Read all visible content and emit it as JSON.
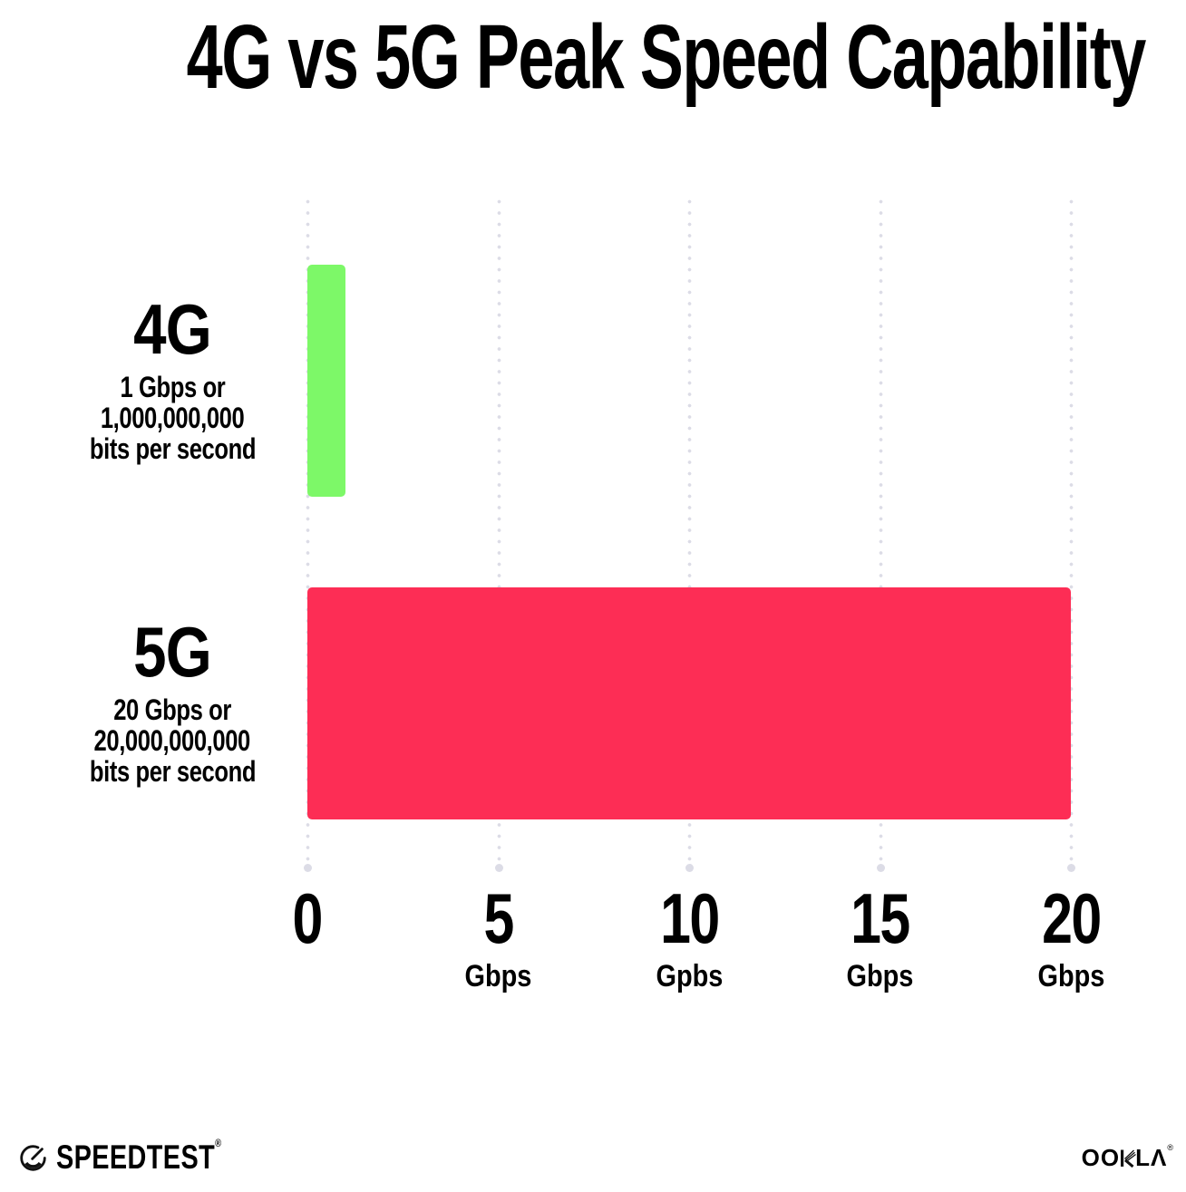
{
  "title": "4G vs 5G Peak Speed Capability",
  "chart_data": {
    "type": "bar",
    "orientation": "horizontal",
    "categories": [
      "4G",
      "5G"
    ],
    "values": [
      1,
      20
    ],
    "unit": "Gbps",
    "title": "4G vs 5G Peak Speed Capability",
    "xlim": [
      0,
      20
    ],
    "xticks": [
      0,
      5,
      10,
      15,
      20
    ],
    "xtick_unit_labels": [
      "",
      "Gbps",
      "Gpbs",
      "Gbps",
      "Gbps"
    ],
    "grid": "dotted-vertical",
    "legend": "none",
    "bar_colors": [
      "#7DF868",
      "#FD2D55"
    ],
    "annotations": [
      "1 Gbps or 1,000,000,000 bits per second",
      "20 Gbps or 20,000,000,000 bits per second"
    ]
  },
  "rows": [
    {
      "label": "4G",
      "desc_line1": "1 Gbps or",
      "desc_line2": "1,000,000,000",
      "desc_line3": "bits per second",
      "value": 1,
      "color": "#7DF868"
    },
    {
      "label": "5G",
      "desc_line1": "20 Gbps or",
      "desc_line2": "20,000,000,000",
      "desc_line3": "bits per second",
      "value": 20,
      "color": "#FD2D55"
    }
  ],
  "x_axis": {
    "ticks": [
      {
        "num": "0",
        "unit": ""
      },
      {
        "num": "5",
        "unit": "Gbps"
      },
      {
        "num": "10",
        "unit": "Gpbs"
      },
      {
        "num": "15",
        "unit": "Gbps"
      },
      {
        "num": "20",
        "unit": "Gbps"
      }
    ]
  },
  "footer": {
    "speedtest_wordmark": "SPEEDTEST",
    "speedtest_reg_mark": "®",
    "ookla_wordmark_prefix": "OO",
    "ookla_wordmark_suffix": "LΛ",
    "ookla_reg_mark": "®"
  },
  "colors": {
    "bar_4g": "#7DF868",
    "bar_5g": "#FD2D55",
    "grid_dot": "#DCDCE6",
    "text": "#000000",
    "background": "#FFFFFF"
  }
}
